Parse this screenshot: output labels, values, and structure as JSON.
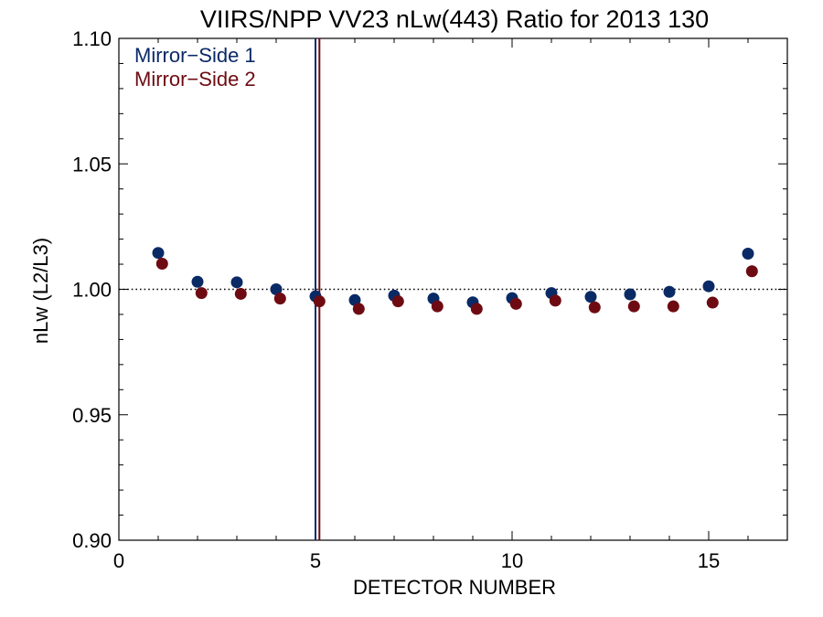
{
  "chart_data": {
    "type": "scatter",
    "title": "VIIRS/NPP VV23 nLw(443) Ratio for 2013 130",
    "xlabel": "DETECTOR NUMBER",
    "ylabel": "nLw (L2/L3)",
    "xlim": [
      0,
      17
    ],
    "ylim": [
      0.9,
      1.1
    ],
    "x_ticks": [
      0,
      5,
      10,
      15
    ],
    "y_ticks": [
      0.9,
      0.95,
      1.0,
      1.05,
      1.1
    ],
    "x_tick_labels": [
      "0",
      "5",
      "10",
      "15"
    ],
    "y_tick_labels": [
      "0.90",
      "0.95",
      "1.00",
      "1.05",
      "1.10"
    ],
    "reference_line": {
      "y": 1.0,
      "style": "dotted"
    },
    "legend_placement": "top-left",
    "series": [
      {
        "name": "Mirror−Side 1",
        "color": "#0a2a66",
        "x": [
          1,
          2,
          3,
          4,
          5,
          6,
          7,
          8,
          9,
          10,
          11,
          12,
          13,
          14,
          15,
          16
        ],
        "values": [
          1.0145,
          1.003,
          1.0028,
          1.0,
          0.9972,
          0.9957,
          0.9975,
          0.9963,
          0.9948,
          0.9965,
          0.9985,
          0.997,
          0.998,
          0.999,
          1.0012,
          1.0142
        ],
        "vline_x": 5.0
      },
      {
        "name": "Mirror−Side 2",
        "color": "#6e0b12",
        "x": [
          1.1,
          2.1,
          3.1,
          4.1,
          5.1,
          6.1,
          7.1,
          8.1,
          9.1,
          10.1,
          11.1,
          12.1,
          13.1,
          14.1,
          15.1,
          16.1
        ],
        "values": [
          1.0102,
          0.9985,
          0.9982,
          0.9963,
          0.9952,
          0.9922,
          0.9952,
          0.9932,
          0.9922,
          0.9942,
          0.9955,
          0.9928,
          0.9932,
          0.9932,
          0.9947,
          1.0072
        ],
        "vline_x": 5.1
      }
    ]
  }
}
